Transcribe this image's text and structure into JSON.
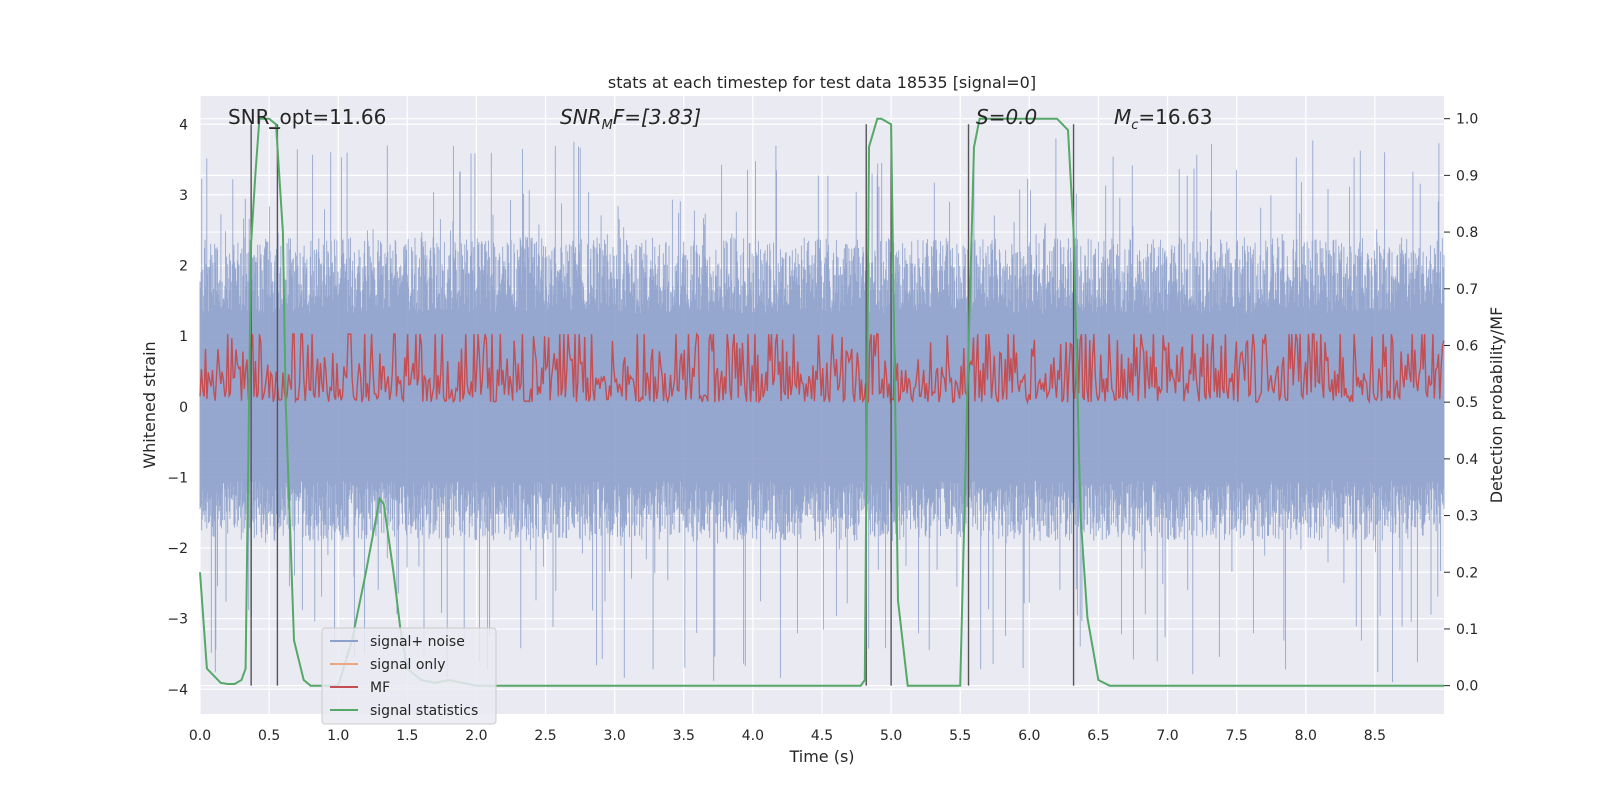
{
  "chart_data": {
    "type": "line",
    "title": "stats at each timestep for test data 18535 [signal=0]",
    "xlabel": "Time (s)",
    "ylabel_left": "Whitened strain",
    "ylabel_right": "Detection probability/MF",
    "xlim": [
      0.0,
      9.0
    ],
    "ylim_left": [
      -4.35,
      4.4
    ],
    "ylim_right": [
      -0.05,
      1.04
    ],
    "xticks": [
      "0.0",
      "0.5",
      "1.0",
      "1.5",
      "2.0",
      "2.5",
      "3.0",
      "3.5",
      "4.0",
      "4.5",
      "5.0",
      "5.5",
      "6.0",
      "6.5",
      "7.0",
      "7.5",
      "8.0",
      "8.5"
    ],
    "yticks_left": [
      "4",
      "3",
      "2",
      "1",
      "0",
      "−1",
      "−2",
      "−3",
      "−4"
    ],
    "yticks_right": [
      "1.0",
      "0.9",
      "0.8",
      "0.7",
      "0.6",
      "0.5",
      "0.4",
      "0.3",
      "0.2",
      "0.1",
      "0.0"
    ],
    "grid": true,
    "annotations": {
      "snr_opt": "SNR_opt=11.66",
      "snr_mf_main": "SNR",
      "snr_mf_sub": "M",
      "snr_mf_rest": "F=[3.83]",
      "s": "S=0.0",
      "mc_main": "M",
      "mc_sub": "c",
      "mc_rest": "=16.63"
    },
    "vlines": [
      0.37,
      0.56,
      4.82,
      5.0,
      5.56,
      6.32
    ],
    "noise_envelope": {
      "typical_upper": 2.4,
      "typical_lower": -1.9,
      "max_upper": 3.8,
      "min_lower": -3.9
    },
    "mf_range": [
      0.5,
      0.62
    ],
    "series": [
      {
        "name": "signal+ noise",
        "color": "#8da0cb",
        "axis": "left"
      },
      {
        "name": "signal only",
        "color": "#f0a582",
        "axis": "left"
      },
      {
        "name": "MF",
        "color": "#c44e52",
        "axis": "right"
      },
      {
        "name": "signal statistics",
        "color": "#55a868",
        "axis": "right",
        "x": [
          0.0,
          0.05,
          0.15,
          0.2,
          0.25,
          0.3,
          0.33,
          0.37,
          0.4,
          0.43,
          0.5,
          0.55,
          0.6,
          0.62,
          0.68,
          0.75,
          0.8,
          0.9,
          1.0,
          1.1,
          1.2,
          1.3,
          1.33,
          1.4,
          1.45,
          1.5,
          1.6,
          1.7,
          1.8,
          1.9,
          2.0,
          2.5,
          3.0,
          3.5,
          4.0,
          4.5,
          4.78,
          4.81,
          4.84,
          4.9,
          4.93,
          5.0,
          5.05,
          5.12,
          5.2,
          5.3,
          5.4,
          5.5,
          5.55,
          5.6,
          5.64,
          5.7,
          5.8,
          6.0,
          6.2,
          6.28,
          6.32,
          6.37,
          6.42,
          6.5,
          6.58,
          7.0,
          8.0,
          9.0
        ],
        "values": [
          0.2,
          0.03,
          0.005,
          0.003,
          0.003,
          0.01,
          0.03,
          0.78,
          0.9,
          1.0,
          1.0,
          0.99,
          0.8,
          0.5,
          0.08,
          0.01,
          0.0,
          0.0,
          0.0,
          0.08,
          0.2,
          0.33,
          0.32,
          0.2,
          0.1,
          0.03,
          0.01,
          0.005,
          0.01,
          0.005,
          0.0,
          0.0,
          0.0,
          0.0,
          0.0,
          0.0,
          0.0,
          0.01,
          0.95,
          1.0,
          1.0,
          0.99,
          0.15,
          0.0,
          0.0,
          0.0,
          0.0,
          0.0,
          0.5,
          0.95,
          1.0,
          1.0,
          1.0,
          1.0,
          1.0,
          0.98,
          0.8,
          0.3,
          0.12,
          0.01,
          0.0,
          0.0,
          0.0,
          0.0
        ]
      }
    ],
    "legend_location": "lower-left"
  }
}
